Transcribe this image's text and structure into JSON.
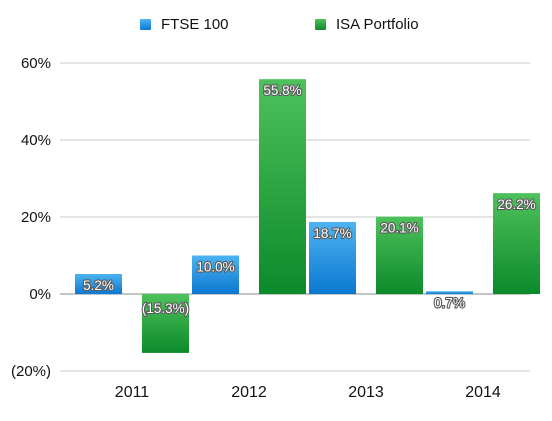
{
  "colors": {
    "ftse_top": "#4db3f2",
    "ftse_bottom": "#0b78d0",
    "isa_top": "#4ec15c",
    "isa_bottom": "#0c8a2a",
    "grid": "#c8c8c8",
    "zero_line": "#888888"
  },
  "legend": {
    "ftse": "FTSE 100",
    "isa": "ISA Portfolio"
  },
  "chart_data": {
    "type": "bar",
    "categories": [
      "2011",
      "2012",
      "2013",
      "2014"
    ],
    "series": [
      {
        "name": "FTSE 100",
        "values": [
          5.2,
          10.0,
          18.7,
          0.7
        ],
        "labels": [
          "5.2%",
          "10.0%",
          "18.7%",
          "0.7%"
        ]
      },
      {
        "name": "ISA Portfolio",
        "values": [
          -15.3,
          55.8,
          20.1,
          26.2
        ],
        "labels": [
          "(15.3%)",
          "55.8%",
          "20.1%",
          "26.2%"
        ]
      }
    ],
    "ylim": [
      -20,
      60
    ],
    "yticks": [
      60,
      40,
      20,
      0,
      -20
    ],
    "ytick_labels": [
      "60%",
      "40%",
      "20%",
      "0%",
      "(20%)"
    ],
    "grid": true,
    "legend_position": "top"
  }
}
